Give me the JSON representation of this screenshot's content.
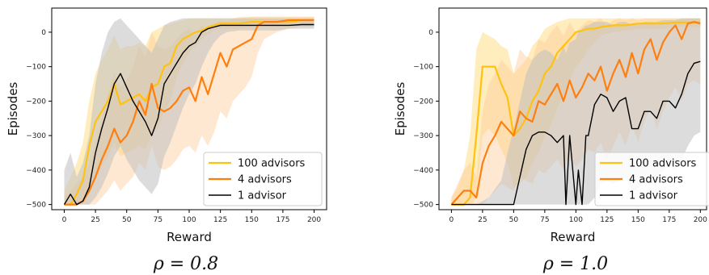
{
  "chart_data": [
    {
      "type": "line",
      "caption": "ρ = 0.8",
      "xlabel": "Reward",
      "ylabel": "Episodes",
      "xlim": [
        -10,
        210
      ],
      "ylim": [
        -515,
        70
      ],
      "xticks": [
        0,
        25,
        50,
        75,
        100,
        125,
        150,
        175,
        200
      ],
      "yticks": [
        0,
        -100,
        -200,
        -300,
        -400,
        -500
      ],
      "legend_position": "lower-right",
      "series": [
        {
          "name": "100 advisors",
          "color": "#FFC20E",
          "band_color": "#FFD86E",
          "x": [
            0,
            5,
            10,
            15,
            20,
            25,
            30,
            35,
            40,
            45,
            50,
            55,
            60,
            65,
            70,
            75,
            80,
            85,
            90,
            95,
            100,
            105,
            110,
            115,
            120,
            125,
            130,
            140,
            150,
            160,
            170,
            180,
            190,
            200
          ],
          "y": [
            -500,
            -500,
            -470,
            -430,
            -330,
            -260,
            -230,
            -200,
            -150,
            -210,
            -200,
            -190,
            -180,
            -200,
            -160,
            -150,
            -100,
            -90,
            -40,
            -20,
            -10,
            0,
            5,
            15,
            20,
            25,
            25,
            25,
            30,
            30,
            30,
            30,
            35,
            35
          ],
          "band_low": [
            -500,
            -500,
            -500,
            -500,
            -470,
            -420,
            -390,
            -360,
            -320,
            -360,
            -350,
            -340,
            -330,
            -340,
            -300,
            -280,
            -230,
            -200,
            -130,
            -90,
            -60,
            -40,
            -20,
            -5,
            5,
            10,
            10,
            10,
            15,
            15,
            15,
            15,
            20,
            20
          ],
          "band_high": [
            -460,
            -420,
            -380,
            -320,
            -200,
            -120,
            -80,
            -50,
            -10,
            -50,
            -40,
            -40,
            -30,
            -40,
            0,
            10,
            20,
            25,
            30,
            35,
            40,
            40,
            40,
            40,
            40,
            40,
            40,
            40,
            45,
            45,
            45,
            45,
            45,
            45
          ]
        },
        {
          "name": "4 advisors",
          "color": "#FF7F0E",
          "band_color": "#FFCB99",
          "x": [
            0,
            5,
            10,
            15,
            20,
            25,
            30,
            35,
            40,
            45,
            50,
            55,
            60,
            65,
            70,
            75,
            80,
            85,
            90,
            95,
            100,
            105,
            110,
            115,
            120,
            125,
            130,
            135,
            140,
            145,
            150,
            155,
            160,
            170,
            180,
            190,
            200
          ],
          "y": [
            -500,
            -500,
            -500,
            -490,
            -460,
            -420,
            -370,
            -330,
            -280,
            -320,
            -300,
            -260,
            -200,
            -240,
            -150,
            -220,
            -230,
            -220,
            -200,
            -170,
            -160,
            -200,
            -130,
            -180,
            -120,
            -60,
            -100,
            -50,
            -40,
            -30,
            -20,
            20,
            30,
            30,
            35,
            35,
            35
          ],
          "band_low": [
            -500,
            -500,
            -500,
            -500,
            -500,
            -500,
            -480,
            -460,
            -430,
            -460,
            -440,
            -420,
            -380,
            -400,
            -330,
            -390,
            -400,
            -390,
            -370,
            -340,
            -330,
            -350,
            -300,
            -330,
            -290,
            -230,
            -250,
            -200,
            -180,
            -160,
            -130,
            -60,
            -20,
            0,
            10,
            15,
            15
          ],
          "band_high": [
            -480,
            -460,
            -440,
            -420,
            -380,
            -320,
            -250,
            -180,
            -120,
            -160,
            -140,
            -100,
            -40,
            -70,
            0,
            -40,
            -50,
            -40,
            -20,
            0,
            10,
            -10,
            20,
            0,
            25,
            35,
            30,
            40,
            45,
            45,
            45,
            45,
            45,
            45,
            45,
            45,
            45
          ]
        },
        {
          "name": "1 advisor",
          "color": "#000000",
          "band_color": "#C0C0C0",
          "x": [
            0,
            5,
            10,
            15,
            20,
            25,
            30,
            35,
            40,
            45,
            50,
            55,
            60,
            65,
            70,
            75,
            80,
            85,
            90,
            95,
            100,
            105,
            110,
            115,
            120,
            125,
            130,
            140,
            150,
            160,
            170,
            180,
            190,
            200
          ],
          "y": [
            -500,
            -470,
            -500,
            -490,
            -450,
            -350,
            -280,
            -220,
            -150,
            -120,
            -160,
            -200,
            -230,
            -260,
            -300,
            -250,
            -150,
            -120,
            -90,
            -60,
            -40,
            -30,
            0,
            10,
            15,
            20,
            20,
            20,
            20,
            20,
            20,
            20,
            22,
            22
          ],
          "band_low": [
            -500,
            -500,
            -500,
            -500,
            -500,
            -480,
            -450,
            -410,
            -360,
            -330,
            -370,
            -400,
            -430,
            -450,
            -470,
            -440,
            -360,
            -320,
            -270,
            -220,
            -180,
            -150,
            -100,
            -60,
            -30,
            -10,
            0,
            5,
            5,
            5,
            5,
            10,
            10,
            10
          ],
          "band_high": [
            -400,
            -350,
            -420,
            -380,
            -300,
            -150,
            -60,
            0,
            30,
            40,
            20,
            0,
            -20,
            -40,
            -60,
            -20,
            20,
            30,
            35,
            40,
            40,
            40,
            40,
            40,
            40,
            40,
            40,
            40,
            40,
            40,
            40,
            40,
            40,
            40
          ]
        }
      ]
    },
    {
      "type": "line",
      "caption": "ρ = 1.0",
      "xlabel": "Reward",
      "ylabel": "Episodes",
      "xlim": [
        -10,
        205
      ],
      "ylim": [
        -515,
        70
      ],
      "xticks": [
        0,
        25,
        50,
        75,
        100,
        125,
        150,
        175,
        200
      ],
      "yticks": [
        0,
        -100,
        -200,
        -300,
        -400,
        -500
      ],
      "legend_position": "lower-right",
      "series": [
        {
          "name": "100 advisors",
          "color": "#FFC20E",
          "band_color": "#FFD86E",
          "x": [
            0,
            5,
            10,
            15,
            20,
            25,
            30,
            35,
            40,
            45,
            50,
            55,
            60,
            65,
            70,
            75,
            80,
            85,
            90,
            95,
            100,
            105,
            110,
            115,
            120,
            130,
            140,
            150,
            160,
            170,
            180,
            190,
            200
          ],
          "y": [
            -500,
            -500,
            -500,
            -480,
            -300,
            -100,
            -100,
            -100,
            -150,
            -190,
            -300,
            -280,
            -250,
            -200,
            -170,
            -120,
            -100,
            -60,
            -40,
            -20,
            0,
            5,
            10,
            10,
            15,
            20,
            20,
            25,
            25,
            25,
            28,
            28,
            28
          ],
          "band_low": [
            -500,
            -500,
            -500,
            -500,
            -480,
            -300,
            -280,
            -300,
            -340,
            -380,
            -450,
            -440,
            -420,
            -380,
            -350,
            -300,
            -270,
            -220,
            -180,
            -140,
            -100,
            -80,
            -50,
            -30,
            -10,
            0,
            5,
            10,
            10,
            10,
            15,
            15,
            15
          ],
          "band_high": [
            -480,
            -450,
            -400,
            -300,
            -50,
            0,
            -10,
            -20,
            -40,
            -50,
            -120,
            -100,
            -80,
            -40,
            -20,
            10,
            20,
            30,
            35,
            40,
            40,
            40,
            40,
            40,
            40,
            40,
            40,
            40,
            40,
            40,
            40,
            40,
            40
          ]
        },
        {
          "name": "4 advisors",
          "color": "#FF7F0E",
          "band_color": "#FFCB99",
          "x": [
            0,
            5,
            10,
            15,
            20,
            25,
            30,
            35,
            40,
            45,
            50,
            55,
            60,
            65,
            70,
            75,
            80,
            85,
            90,
            95,
            100,
            105,
            110,
            115,
            120,
            125,
            130,
            135,
            140,
            145,
            150,
            155,
            160,
            165,
            170,
            175,
            180,
            185,
            190,
            195,
            200
          ],
          "y": [
            -500,
            -480,
            -460,
            -460,
            -480,
            -380,
            -330,
            -300,
            -260,
            -280,
            -300,
            -230,
            -250,
            -260,
            -200,
            -210,
            -180,
            -150,
            -200,
            -140,
            -190,
            -160,
            -120,
            -140,
            -100,
            -170,
            -120,
            -80,
            -130,
            -60,
            -120,
            -50,
            -20,
            -80,
            -30,
            0,
            20,
            -20,
            25,
            30,
            25
          ],
          "band_low": [
            -500,
            -500,
            -500,
            -500,
            -500,
            -500,
            -480,
            -460,
            -440,
            -450,
            -460,
            -420,
            -430,
            -440,
            -400,
            -410,
            -390,
            -370,
            -400,
            -360,
            -390,
            -370,
            -340,
            -350,
            -320,
            -370,
            -330,
            -290,
            -330,
            -270,
            -320,
            -260,
            -220,
            -280,
            -230,
            -190,
            -160,
            -200,
            -150,
            -140,
            -150
          ],
          "band_high": [
            -480,
            -440,
            -400,
            -380,
            -420,
            -230,
            -150,
            -120,
            -80,
            -100,
            -120,
            -50,
            -70,
            -80,
            -20,
            -30,
            0,
            20,
            -10,
            30,
            0,
            20,
            35,
            30,
            40,
            20,
            35,
            40,
            35,
            40,
            35,
            40,
            40,
            40,
            40,
            40,
            40,
            40,
            40,
            40,
            40
          ]
        },
        {
          "name": "1 advisor",
          "color": "#000000",
          "band_color": "#C0C0C0",
          "x": [
            0,
            10,
            20,
            30,
            40,
            45,
            50,
            55,
            60,
            65,
            70,
            75,
            80,
            85,
            90,
            92,
            95,
            100,
            102,
            105,
            108,
            110,
            115,
            120,
            125,
            130,
            135,
            140,
            145,
            150,
            155,
            160,
            165,
            170,
            175,
            180,
            185,
            190,
            195,
            200
          ],
          "y": [
            -500,
            -500,
            -500,
            -500,
            -500,
            -500,
            -500,
            -420,
            -340,
            -300,
            -290,
            -290,
            -300,
            -320,
            -300,
            -500,
            -300,
            -500,
            -400,
            -500,
            -300,
            -300,
            -210,
            -180,
            -190,
            -230,
            -200,
            -190,
            -280,
            -280,
            -230,
            -230,
            -250,
            -200,
            -200,
            -220,
            -180,
            -120,
            -90,
            -85
          ],
          "band_low": [
            -500,
            -500,
            -500,
            -500,
            -500,
            -500,
            -500,
            -500,
            -500,
            -500,
            -500,
            -500,
            -500,
            -500,
            -500,
            -500,
            -500,
            -500,
            -500,
            -500,
            -500,
            -500,
            -480,
            -440,
            -430,
            -440,
            -430,
            -420,
            -460,
            -460,
            -420,
            -410,
            -420,
            -400,
            -390,
            -400,
            -370,
            -330,
            -300,
            -290
          ],
          "band_high": [
            -500,
            -500,
            -500,
            -480,
            -430,
            -350,
            -280,
            -200,
            -120,
            -80,
            -60,
            -50,
            -60,
            -80,
            -40,
            -60,
            -30,
            -20,
            0,
            10,
            20,
            20,
            30,
            30,
            30,
            20,
            30,
            30,
            20,
            25,
            30,
            30,
            30,
            35,
            35,
            35,
            40,
            40,
            40,
            40
          ]
        }
      ]
    }
  ]
}
